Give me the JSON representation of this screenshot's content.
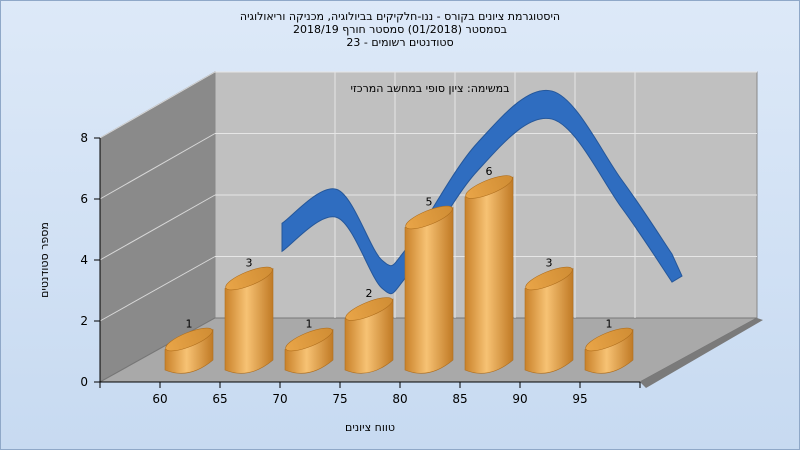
{
  "chart_data": {
    "type": "bar",
    "title_lines": [
      "היסטוגרמת ציונים בקורס - ננו-חלקיקים בביולוגיה, מכניקה וריאולוגיה",
      "בסמסטר  (01/2018)  סמסטר חורף 2018/19",
      "סטודנטים רשומים - 23"
    ],
    "subtitle": "במשימה: ציון סופי במחשב המרכזי",
    "xlabel": "טווח ציונים",
    "ylabel": "מספר סטודנטים",
    "x_ticks": [
      "60",
      "65",
      "70",
      "75",
      "80",
      "85",
      "90",
      "95"
    ],
    "y_ticks": [
      "0",
      "2",
      "4",
      "6",
      "8"
    ],
    "ylim": [
      0,
      8
    ],
    "bars": [
      {
        "value": 1,
        "label": "1"
      },
      {
        "value": 3,
        "label": "3"
      },
      {
        "value": 1,
        "label": "1"
      },
      {
        "value": 2,
        "label": "2"
      },
      {
        "value": 5,
        "label": "5"
      },
      {
        "value": 6,
        "label": "6"
      },
      {
        "value": 3,
        "label": "3"
      },
      {
        "value": 1,
        "label": "1"
      }
    ],
    "curve": [
      3.6,
      4.7,
      2.4,
      2.8,
      6.2,
      7.9,
      5.0,
      2.6
    ],
    "grid": true,
    "colors": {
      "bar": "#e8a245",
      "curve": "#2f6dc0",
      "back_wall": "#c0c0c0",
      "side_wall": "#8a8a8a",
      "floor": "#a9a9a9"
    }
  }
}
